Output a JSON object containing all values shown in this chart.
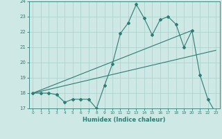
{
  "xlabel": "Humidex (Indice chaleur)",
  "bg_color": "#cde8e5",
  "line_color": "#2e7d72",
  "grid_color": "#aacfcb",
  "xlim": [
    -0.5,
    23.5
  ],
  "ylim": [
    17,
    24
  ],
  "xticks": [
    0,
    1,
    2,
    3,
    4,
    5,
    6,
    7,
    8,
    9,
    10,
    11,
    12,
    13,
    14,
    15,
    16,
    17,
    18,
    19,
    20,
    21,
    22,
    23
  ],
  "yticks": [
    17,
    18,
    19,
    20,
    21,
    22,
    23,
    24
  ],
  "line1_x": [
    0,
    1,
    2,
    3,
    4,
    5,
    6,
    7,
    8,
    9,
    10,
    11,
    12,
    13,
    14,
    15,
    16,
    17,
    18,
    19,
    20,
    21,
    22,
    23
  ],
  "line1_y": [
    18.0,
    18.0,
    18.0,
    17.9,
    17.4,
    17.6,
    17.6,
    17.6,
    17.0,
    18.5,
    19.9,
    21.9,
    22.6,
    23.8,
    22.9,
    21.8,
    22.8,
    23.0,
    22.5,
    21.0,
    22.1,
    19.2,
    17.6,
    16.7
  ],
  "line2_x": [
    0,
    20
  ],
  "line2_y": [
    18.0,
    22.1
  ],
  "line3_x": [
    0,
    23
  ],
  "line3_y": [
    18.0,
    20.8
  ]
}
